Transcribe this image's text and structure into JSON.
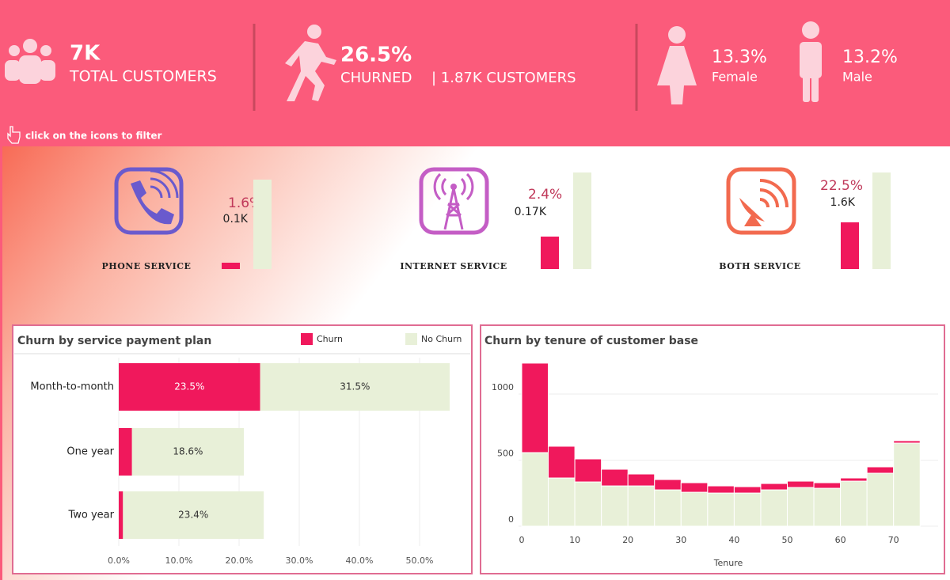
{
  "header": {
    "kpis": {
      "total": {
        "value": "7K",
        "label": "TOTAL CUSTOMERS"
      },
      "churned": {
        "value": "26.5%",
        "label": "CHURNED",
        "detail": "| 1.87K CUSTOMERS"
      },
      "female": {
        "value": "13.3%",
        "label": "Female"
      },
      "male": {
        "value": "13.2%",
        "label": "Male"
      }
    },
    "hint": "click on the icons to filter"
  },
  "services": [
    {
      "label": "PHONE SERVICE",
      "rate": "1.6%",
      "count": "0.1K",
      "ylim": [
        0,
        125
      ],
      "churn_bar": 8,
      "no_churn_bar": 113
    },
    {
      "label": "INTERNET SERVICE",
      "rate": "2.4%",
      "count": "0.17K",
      "ylim": [
        0,
        125
      ],
      "churn_bar": 41,
      "no_churn_bar": 122
    },
    {
      "label": "BOTH SERVICE",
      "rate": "22.5%",
      "count": "1.6K",
      "ylim": [
        0,
        125
      ],
      "churn_bar": 59,
      "no_churn_bar": 122
    }
  ],
  "chart_data": [
    {
      "type": "stacked-barh",
      "title": "Churn by service payment plan",
      "categories": [
        "Month-to-month",
        "One year",
        "Two year"
      ],
      "series": [
        {
          "name": "Churn",
          "color": "#f0185c",
          "values": [
            23.5,
            2.2,
            0.7
          ],
          "value_labels": [
            "23.5%",
            null,
            null
          ]
        },
        {
          "name": "No Churn",
          "color": "#e8f0d8",
          "values": [
            31.5,
            18.6,
            23.4
          ],
          "value_labels": [
            "31.5%",
            "18.6%",
            "23.4%"
          ]
        }
      ],
      "xlim": [
        0,
        58
      ],
      "xticks": [
        {
          "value": 0,
          "label": "0.0%"
        },
        {
          "value": 10,
          "label": "10.0%"
        },
        {
          "value": 20,
          "label": "20.0%"
        },
        {
          "value": 30,
          "label": "30.0%"
        },
        {
          "value": 40,
          "label": "40.0%"
        },
        {
          "value": 50,
          "label": "50.0%"
        }
      ],
      "grid": true
    },
    {
      "type": "stacked-histogram",
      "title": "Churn by tenure of customer base",
      "xlabel": "Tenure",
      "bins": [
        0,
        5,
        10,
        15,
        20,
        25,
        30,
        35,
        40,
        45,
        50,
        55,
        60,
        65,
        70,
        75
      ],
      "series": [
        {
          "color": "#e8f0d8",
          "values": [
            557,
            365,
            335,
            305,
            305,
            275,
            257,
            251,
            251,
            275,
            293,
            287,
            341,
            401,
            629
          ]
        },
        {
          "color": "#f0185c",
          "values": [
            677,
            240,
            174,
            126,
            90,
            78,
            72,
            54,
            48,
            48,
            48,
            42,
            24,
            48,
            18
          ]
        }
      ],
      "xlim": [
        0,
        75
      ],
      "xticks": [
        0,
        10,
        20,
        30,
        40,
        50,
        60,
        70
      ],
      "ylim": [
        0,
        1300
      ],
      "yticks": [
        0,
        500,
        1000
      ],
      "grid": true
    }
  ]
}
